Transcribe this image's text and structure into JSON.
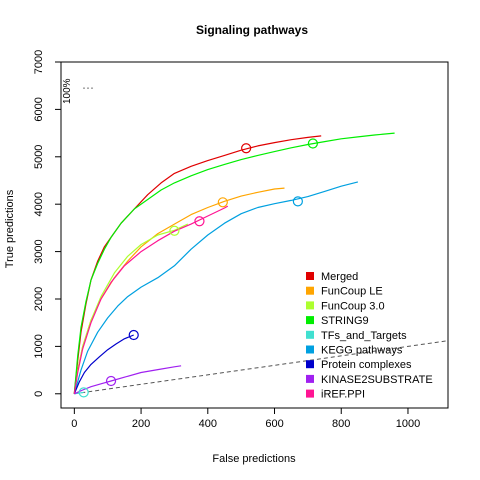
{
  "chart_data": {
    "type": "line",
    "title": "Signaling pathways",
    "xlabel": "False predictions",
    "ylabel": "True predictions",
    "xlim": [
      -40,
      1120
    ],
    "ylim": [
      -300,
      7000
    ],
    "xticks": [
      0,
      200,
      400,
      600,
      800,
      1000
    ],
    "yticks": [
      0,
      1000,
      2000,
      3000,
      4000,
      5000,
      6000,
      7000
    ],
    "grid": false,
    "legend_position": "bottom-right",
    "annotation": {
      "text": "100%",
      "x": -10,
      "y": 6450
    },
    "reference_line": {
      "label": "",
      "points": [
        [
          0,
          0
        ],
        [
          1120,
          1120
        ]
      ],
      "style": "dashed",
      "color": "#555555"
    },
    "series": [
      {
        "name": "Merged",
        "color": "#e00000",
        "marker": {
          "x": 515,
          "y": 5180
        },
        "x": [
          0,
          10,
          20,
          35,
          50,
          70,
          90,
          110,
          140,
          180,
          220,
          260,
          300,
          350,
          400,
          450,
          500,
          550,
          600,
          650,
          700,
          740
        ],
        "y": [
          0,
          700,
          1300,
          1900,
          2400,
          2800,
          3100,
          3300,
          3600,
          3900,
          4200,
          4450,
          4650,
          4800,
          4920,
          5030,
          5140,
          5230,
          5300,
          5360,
          5410,
          5440
        ]
      },
      {
        "name": "FunCoup LE",
        "color": "#ffa500",
        "marker": {
          "x": 445,
          "y": 4040
        },
        "x": [
          0,
          10,
          25,
          50,
          80,
          120,
          160,
          200,
          250,
          300,
          350,
          400,
          450,
          500,
          550,
          600,
          630
        ],
        "y": [
          0,
          500,
          1000,
          1550,
          2000,
          2450,
          2800,
          3100,
          3380,
          3580,
          3780,
          3930,
          4060,
          4170,
          4250,
          4320,
          4340
        ]
      },
      {
        "name": "FunCoup 3.0",
        "color": "#adff2f",
        "marker": {
          "x": 300,
          "y": 3440
        },
        "x": [
          0,
          10,
          25,
          50,
          80,
          120,
          160,
          200,
          250,
          300,
          340
        ],
        "y": [
          0,
          480,
          1000,
          1550,
          2050,
          2550,
          2900,
          3150,
          3350,
          3450,
          3580
        ]
      },
      {
        "name": "STRING9",
        "color": "#00ee00",
        "marker": {
          "x": 715,
          "y": 5280
        },
        "x": [
          0,
          10,
          20,
          35,
          50,
          70,
          90,
          110,
          140,
          180,
          220,
          260,
          300,
          350,
          400,
          450,
          500,
          550,
          600,
          650,
          700,
          750,
          800,
          850,
          900,
          960
        ],
        "y": [
          0,
          800,
          1400,
          1950,
          2400,
          2750,
          3050,
          3300,
          3600,
          3900,
          4100,
          4300,
          4450,
          4600,
          4730,
          4840,
          4940,
          5030,
          5110,
          5190,
          5260,
          5320,
          5380,
          5420,
          5460,
          5500
        ]
      },
      {
        "name": "TFs_and_Targets",
        "color": "#40e0d0",
        "marker": {
          "x": 28,
          "y": 30
        },
        "x": [
          0,
          10,
          20,
          28
        ],
        "y": [
          0,
          10,
          20,
          30
        ]
      },
      {
        "name": "KEGG pathways",
        "color": "#00a0e0",
        "marker": {
          "x": 670,
          "y": 4060
        },
        "x": [
          0,
          20,
          40,
          70,
          100,
          130,
          160,
          200,
          250,
          300,
          350,
          400,
          450,
          500,
          550,
          600,
          650,
          700,
          750,
          800,
          850
        ],
        "y": [
          0,
          500,
          900,
          1300,
          1600,
          1850,
          2050,
          2250,
          2450,
          2700,
          3050,
          3350,
          3600,
          3800,
          3930,
          4010,
          4080,
          4160,
          4270,
          4380,
          4470
        ]
      },
      {
        "name": "Protein complexes",
        "color": "#0000cc",
        "marker": {
          "x": 178,
          "y": 1240
        },
        "x": [
          0,
          15,
          30,
          50,
          75,
          100,
          125,
          150,
          178
        ],
        "y": [
          0,
          250,
          450,
          620,
          780,
          930,
          1050,
          1160,
          1240
        ]
      },
      {
        "name": "KINASE2SUBSTRATE",
        "color": "#a020f0",
        "marker": {
          "x": 110,
          "y": 270
        },
        "x": [
          0,
          25,
          50,
          80,
          110,
          150,
          200,
          250,
          300,
          320
        ],
        "y": [
          0,
          80,
          150,
          210,
          270,
          350,
          450,
          510,
          570,
          590
        ]
      },
      {
        "name": "iREF.PPI",
        "color": "#ff1493",
        "marker": {
          "x": 375,
          "y": 3640
        },
        "x": [
          0,
          10,
          25,
          50,
          80,
          110,
          150,
          200,
          250,
          300,
          350,
          400,
          450,
          460
        ],
        "y": [
          0,
          450,
          950,
          1500,
          2000,
          2350,
          2700,
          3000,
          3230,
          3430,
          3580,
          3750,
          3920,
          3960
        ]
      }
    ]
  }
}
